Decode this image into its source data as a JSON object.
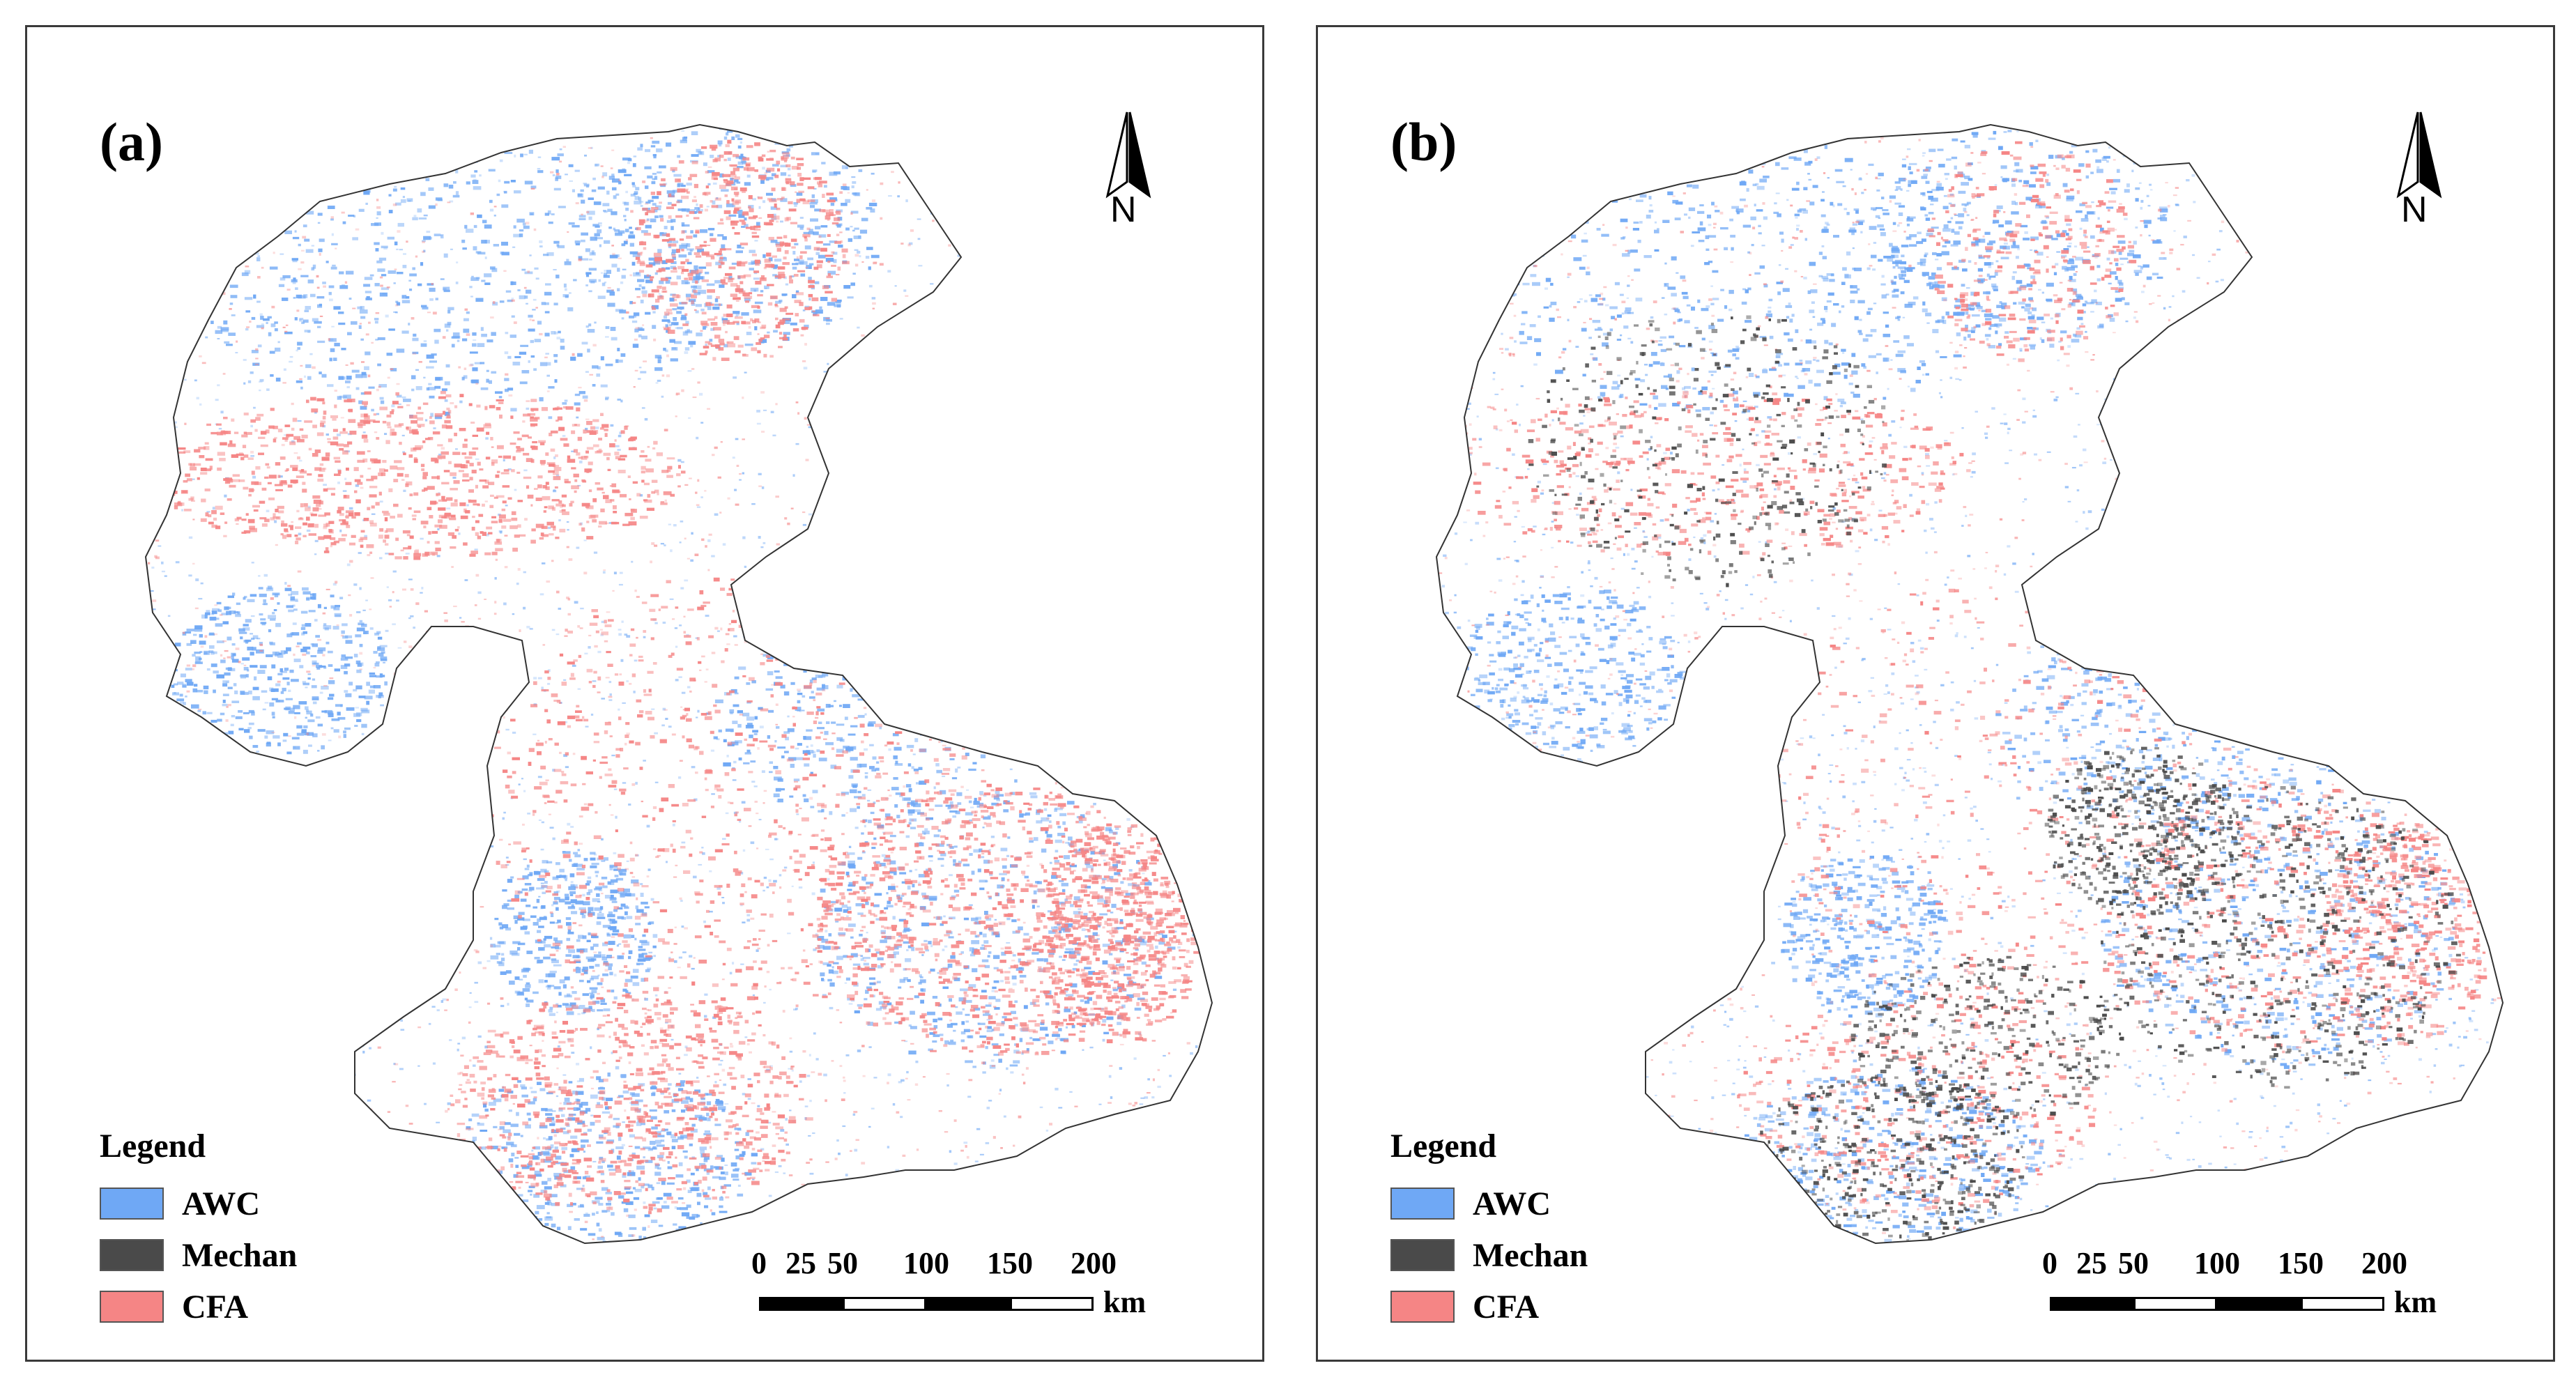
{
  "panels": [
    {
      "label": "(a)",
      "mechan_visible": false
    },
    {
      "label": "(b)",
      "mechan_visible": true
    }
  ],
  "north_arrow": {
    "label": "N"
  },
  "legend": {
    "title": "Legend",
    "items": [
      {
        "label": "AWC",
        "color": "#6fa8f5"
      },
      {
        "label": "Mechan",
        "color": "#4a4a4a"
      },
      {
        "label": "CFA",
        "color": "#f58585"
      }
    ]
  },
  "scale_bar": {
    "ticks": [
      "0",
      "25",
      "50",
      "100",
      "150",
      "200"
    ],
    "unit": "km"
  }
}
